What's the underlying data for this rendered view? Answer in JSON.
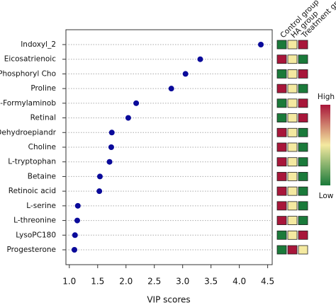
{
  "chart_data": {
    "type": "dot",
    "xlabel": "VIP scores",
    "categories": [
      "Indoxyl_2",
      "Eicosatrienoic",
      "Phosphoryl Cho",
      "Proline",
      "2-Formylaminob",
      "Retinal",
      "Dehydroepiandr",
      "Choline",
      "L-tryptophan",
      "Betaine",
      "Retinoic acid",
      "L-serine",
      "L-threonine",
      "LysoPC180",
      "Progesterone"
    ],
    "values": [
      4.38,
      3.31,
      3.05,
      2.8,
      2.18,
      2.04,
      1.75,
      1.74,
      1.71,
      1.54,
      1.53,
      1.15,
      1.14,
      1.1,
      1.09
    ],
    "color": "#0a0a9a",
    "xlim": [
      0.94,
      4.58
    ],
    "xticks": [
      {
        "value": 1,
        "label": "1.0"
      },
      1.5,
      {
        "value": 2,
        "label": "2.0"
      },
      2.5,
      {
        "value": 3,
        "label": "3.0"
      },
      3.5,
      {
        "value": 4,
        "label": "4.0"
      },
      4.5
    ],
    "grid": true,
    "heatmap": {
      "columns": [
        "Control group",
        "HA group",
        "Treatment group"
      ],
      "values": [
        [
          -1,
          0,
          1
        ],
        [
          1,
          0,
          -1
        ],
        [
          -1,
          0,
          1
        ],
        [
          1,
          0,
          -1
        ],
        [
          -1,
          0,
          1
        ],
        [
          -1,
          0,
          1
        ],
        [
          1,
          0,
          -1
        ],
        [
          1,
          0,
          -1
        ],
        [
          1,
          0,
          -1
        ],
        [
          1,
          0,
          -1
        ],
        [
          1,
          0,
          -1
        ],
        [
          1,
          0,
          -1
        ],
        [
          1,
          0,
          -1
        ],
        [
          -1,
          0,
          1
        ],
        [
          -1,
          1,
          0
        ]
      ],
      "clim": [
        -1,
        1
      ],
      "colormap": [
        "#1a7a3a",
        "#f4e9a0",
        "#a8163a"
      ],
      "high_label": "High",
      "low_label": "Low"
    }
  }
}
